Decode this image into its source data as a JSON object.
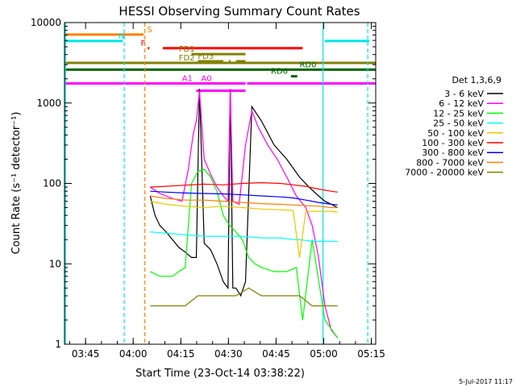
{
  "chart_data": {
    "type": "line",
    "title": "HESSI Observing Summary Count Rates",
    "xlabel": "Start Time (23-Oct-14 03:38:22)",
    "ylabel": "Count Rate (s⁻¹ detector⁻¹)",
    "x_unit": "minutes since 03:38:22 UT",
    "xlim": [
      0,
      98
    ],
    "ylim": [
      1,
      10000
    ],
    "yscale": "log",
    "x_ticks": [
      {
        "label": "03:45",
        "value": 6.63
      },
      {
        "label": "04:00",
        "value": 21.63
      },
      {
        "label": "04:15",
        "value": 36.63
      },
      {
        "label": "04:30",
        "value": 51.63
      },
      {
        "label": "04:45",
        "value": 66.63
      },
      {
        "label": "05:00",
        "value": 81.63
      },
      {
        "label": "05:15",
        "value": 96.63
      }
    ],
    "y_ticks": [
      {
        "label": "1",
        "value": 1
      },
      {
        "label": "10",
        "value": 10
      },
      {
        "label": "100",
        "value": 100
      },
      {
        "label": "1000",
        "value": 1000
      },
      {
        "label": "10000",
        "value": 10000
      }
    ],
    "legend": {
      "title": "Det 1,3,6,9",
      "position": "right"
    },
    "series": [
      {
        "name": "3 - 6 keV",
        "color": "#000000",
        "x": [
          27.0,
          28.5,
          30.0,
          32.0,
          34.0,
          36.0,
          38.0,
          40.0,
          41.5,
          42.5,
          44.0,
          46.0,
          48.0,
          50.0,
          51.5,
          52.2,
          53.0,
          54.0,
          55.5,
          57.0,
          59.0,
          62.0,
          66.0,
          70.0,
          74.0,
          77.0,
          80.0,
          82.0,
          84.0,
          86.0
        ],
        "y": [
          70,
          40,
          30,
          25,
          20,
          16,
          14,
          12,
          12,
          1500,
          18,
          15,
          10,
          6,
          5,
          1500,
          5,
          5,
          4,
          6,
          900,
          600,
          300,
          200,
          120,
          90,
          70,
          60,
          55,
          50
        ]
      },
      {
        "name": "6 - 12 keV",
        "color": "#ff00ff",
        "x": [
          27.0,
          30.0,
          34.0,
          37.0,
          39.0,
          40.5,
          41.5,
          42.5,
          44.0,
          46.0,
          48.0,
          50.0,
          51.5,
          52.2,
          53.0,
          55.0,
          57.0,
          59.0,
          61.0,
          64.0,
          67.0,
          70.0,
          73.0,
          76.0,
          78.0,
          80.0,
          82.0,
          84.0,
          86.0
        ],
        "y": [
          90,
          75,
          65,
          60,
          150,
          400,
          600,
          1400,
          200,
          130,
          90,
          70,
          60,
          1500,
          60,
          55,
          300,
          800,
          500,
          300,
          200,
          120,
          70,
          50,
          30,
          12,
          3,
          1.5,
          1.2
        ]
      },
      {
        "name": "12 - 25 keV",
        "color": "#00ff00",
        "x": [
          27.0,
          30.0,
          34.0,
          36.0,
          38.0,
          40.0,
          42.0,
          44.0,
          46.0,
          48.0,
          50.0,
          52.0,
          54.0,
          56.0,
          58.0,
          60.0,
          62.0,
          66.0,
          70.0,
          73.0,
          75.0,
          78.0,
          82.0,
          86.0
        ],
        "y": [
          8,
          7,
          7,
          8,
          9,
          100,
          140,
          150,
          120,
          80,
          40,
          30,
          25,
          20,
          12,
          10,
          9,
          8,
          8,
          9,
          2,
          20,
          2,
          1.2
        ]
      },
      {
        "name": "25 - 50 keV",
        "color": "#00ffff",
        "x": [
          27.0,
          32.0,
          38.0,
          44.0,
          50.0,
          56.0,
          62.0,
          68.0,
          72.0,
          74.0,
          78.0,
          82.0,
          86.0
        ],
        "y": [
          25,
          24,
          23,
          22,
          22,
          22,
          21,
          21,
          20,
          20,
          19,
          19,
          19
        ]
      },
      {
        "name": "50 - 100 keV",
        "color": "#e8c800",
        "x": [
          27.0,
          32.0,
          38.0,
          44.0,
          50.0,
          56.0,
          62.0,
          68.0,
          72.0,
          74.0,
          76.0,
          80.0,
          84.0,
          86.0
        ],
        "y": [
          60,
          55,
          52,
          50,
          52,
          50,
          48,
          47,
          46,
          12,
          45,
          45,
          45,
          44
        ]
      },
      {
        "name": "100 - 300 keV",
        "color": "#ff0000",
        "x": [
          27.0,
          32.0,
          38.0,
          44.0,
          50.0,
          56.0,
          62.0,
          68.0,
          72.0,
          76.0,
          80.0,
          84.0,
          86.0
        ],
        "y": [
          90,
          92,
          95,
          98,
          96,
          100,
          102,
          100,
          96,
          92,
          85,
          80,
          78
        ]
      },
      {
        "name": "300 - 800 keV",
        "color": "#0000ff",
        "x": [
          27.0,
          32.0,
          38.0,
          44.0,
          50.0,
          56.0,
          62.0,
          68.0,
          72.0,
          76.0,
          80.0,
          84.0,
          86.0
        ],
        "y": [
          80,
          78,
          76,
          75,
          74,
          72,
          70,
          68,
          66,
          62,
          58,
          55,
          54
        ]
      },
      {
        "name": "800 - 7000 keV",
        "color": "#ff8000",
        "x": [
          27.0,
          32.0,
          38.0,
          44.0,
          50.0,
          56.0,
          62.0,
          68.0,
          72.0,
          76.0,
          80.0,
          84.0,
          86.0
        ],
        "y": [
          70,
          65,
          62,
          62,
          60,
          58,
          56,
          55,
          54,
          53,
          52,
          50,
          50
        ]
      },
      {
        "name": "7000 - 20000 keV",
        "color": "#808000",
        "x": [
          27.0,
          30.0,
          34.0,
          38.0,
          42.0,
          46.0,
          50.0,
          54.0,
          58.0,
          62.0,
          66.0,
          70.0,
          74.0,
          78.0,
          82.0,
          86.0
        ],
        "y": [
          3,
          3,
          3,
          3,
          4,
          4,
          4,
          4,
          5,
          4,
          4,
          4,
          4,
          3,
          3,
          3
        ]
      }
    ],
    "vlines": [
      {
        "x": 0.3,
        "color": "#00e6e6",
        "dash": "solid"
      },
      {
        "x": 18.8,
        "color": "#00e6e6",
        "dash": "dashed"
      },
      {
        "x": 25.3,
        "color": "#ff8000",
        "dash": "dashed"
      },
      {
        "x": 81.4,
        "color": "#00e6e6",
        "dash": "solid"
      },
      {
        "x": 95.5,
        "color": "#00e6e6",
        "dash": "dashed"
      }
    ],
    "flags": [
      {
        "label": "S",
        "color": "#ff8000",
        "segments": [
          [
            0,
            24.9
          ]
        ],
        "level": 7100,
        "label_at": 26.0
      },
      {
        "label": "N",
        "color": "#00e6e6",
        "segments": [
          [
            0,
            18.3
          ],
          [
            82.0,
            96.0
          ]
        ],
        "level": 5900,
        "label_at": 17.0
      },
      {
        "label": "F",
        "color": "#ff0000",
        "segments": [
          [
            26.2,
            26.7
          ],
          [
            31.0,
            75.0
          ]
        ],
        "level": 4800,
        "label_at": 24.0
      },
      {
        "label": "FD1",
        "color": "#808000",
        "segments": [
          [
            40.0,
            57.0
          ]
        ],
        "level": 4050,
        "label_at": 36.0
      },
      {
        "label": "FD3",
        "color": "#808000",
        "segments": [
          [
            42.0,
            50.0
          ],
          [
            51.8,
            52.3
          ],
          [
            54.0,
            57.0
          ]
        ],
        "level": 3300,
        "label_at": 42.0
      },
      {
        "label": "FD2",
        "color": "#808000",
        "segments": [
          [
            0,
            98.0
          ]
        ],
        "level": 3150,
        "label_at": 36.0
      },
      {
        "label": "RD0",
        "color": "#006400",
        "segments": [
          [
            0,
            98.0
          ]
        ],
        "level": 2600,
        "label_at": 74.0
      },
      {
        "label": "RD6",
        "color": "#006400",
        "segments": [
          [
            71.3,
            73.3
          ]
        ],
        "level": 2150,
        "label_at": 65.0
      },
      {
        "label": "A0",
        "color": "#ff00ff",
        "segments": [
          [
            0,
            57.0
          ]
        ],
        "level": 1750,
        "label_at": 43.0
      },
      {
        "label": "A1",
        "color": "#ff00ff",
        "segments": [
          [
            57.5,
            98.0
          ]
        ],
        "level": 1750,
        "label_at": 37.0
      },
      {
        "label": "",
        "color": "#ff00ff",
        "segments": [
          [
            41.5,
            57.0
          ]
        ],
        "level": 1420,
        "label_at": 0
      }
    ],
    "footer_date": "5-Jul-2017 11:17"
  }
}
